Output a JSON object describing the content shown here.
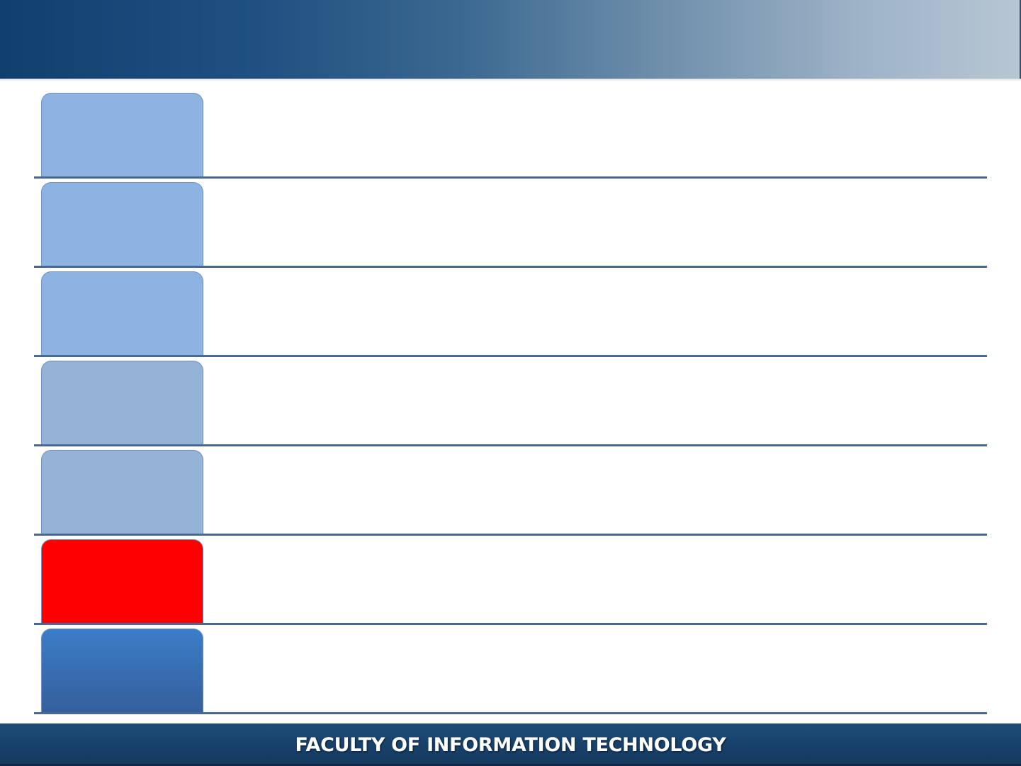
{
  "header": {
    "title": ""
  },
  "rows": [
    {
      "label": "",
      "text": "",
      "color": "#8db3e2"
    },
    {
      "label": "",
      "text": "",
      "color": "#8db3e2"
    },
    {
      "label": "",
      "text": "",
      "color": "#8db3e2"
    },
    {
      "label": "",
      "text": "",
      "color": "#95b3d7"
    },
    {
      "label": "",
      "text": "",
      "color": "#95b3d7"
    },
    {
      "label": "",
      "text": "",
      "color": "#ff0000"
    },
    {
      "label": "",
      "text": "",
      "color": "gradient:#3b7dc8-#355f9c"
    }
  ],
  "footer": {
    "title": "FACULTY OF INFORMATION TECHNOLOGY"
  },
  "colors": {
    "header_gradient_start": "#10406e",
    "header_gradient_end": "#b7c6d4",
    "divider": "#4a6894",
    "footer": "#173f68"
  }
}
